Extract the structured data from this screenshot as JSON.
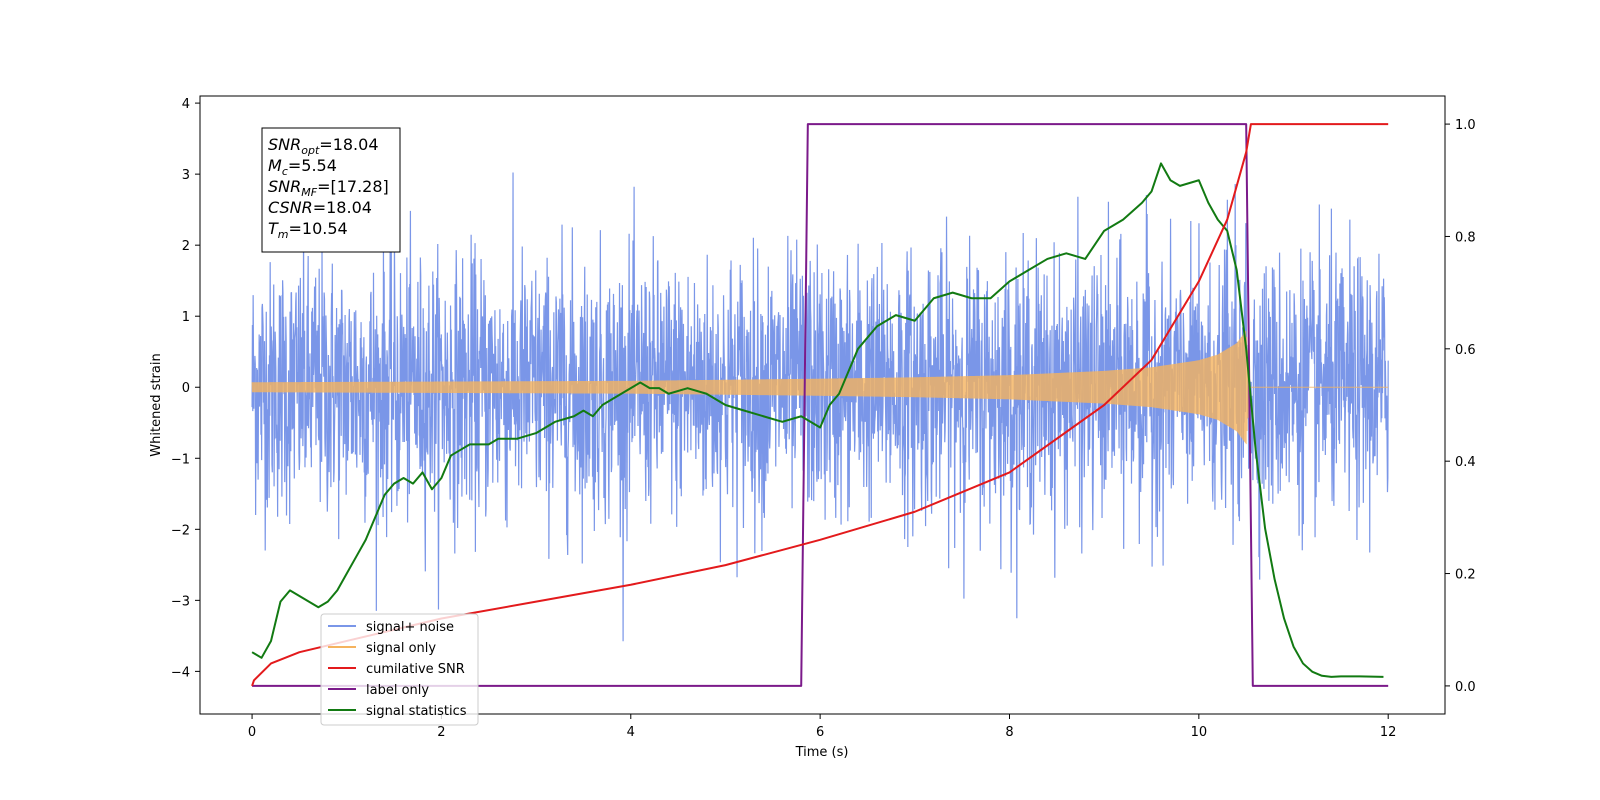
{
  "chart_data": {
    "type": "line",
    "xlabel": "Time (s)",
    "ylabel": "Whitened strain",
    "xlim": [
      -0.55,
      12.6
    ],
    "ylim": [
      -4.6,
      4.1
    ],
    "ylim_right": [
      -0.05,
      1.05
    ],
    "x_ticks": [
      0,
      2,
      4,
      6,
      8,
      10,
      12
    ],
    "y_ticks": [
      -4,
      -3,
      -2,
      -1,
      0,
      1,
      2,
      3,
      4
    ],
    "y_ticks_right": [
      0.0,
      0.2,
      0.4,
      0.6,
      0.8,
      1.0
    ],
    "y_tick_labels": [
      "−4",
      "−3",
      "−2",
      "−1",
      "0",
      "1",
      "2",
      "3",
      "4"
    ],
    "y_tick_labels_right": [
      "0.0",
      "0.2",
      "0.4",
      "0.6",
      "0.8",
      "1.0"
    ],
    "grid": false,
    "legend_position": "lower-left",
    "annotation": {
      "lines": [
        {
          "base": "SNR",
          "sub": "opt",
          "value": "=18.04"
        },
        {
          "base": "M",
          "sub": "c",
          "value": "=5.54"
        },
        {
          "base": "SNR",
          "sub": "MF",
          "value": "=[17.28]"
        },
        {
          "base": "CSNR",
          "sub": "",
          "value": "=18.04"
        },
        {
          "base": "T",
          "sub": "m",
          "value": "=10.54"
        }
      ]
    },
    "series": [
      {
        "name": "signal+ noise",
        "color": "#7a96e8",
        "axis": "left",
        "x_range": [
          0,
          12
        ],
        "envelope_typical": [
          -1.5,
          1.5
        ],
        "envelope_extreme": [
          -4.2,
          3.4
        ]
      },
      {
        "name": "signal only",
        "color": "#f5b35e",
        "axis": "left",
        "t_merger": 10.54,
        "x": [
          0,
          2,
          4,
          6,
          7,
          8,
          9,
          9.5,
          10,
          10.2,
          10.4,
          10.5,
          10.54,
          12
        ],
        "amplitude": [
          0.07,
          0.08,
          0.09,
          0.12,
          0.14,
          0.17,
          0.23,
          0.28,
          0.38,
          0.46,
          0.62,
          0.8,
          0.0,
          0.0
        ]
      },
      {
        "name": "cumilative SNR",
        "color": "#e31a1c",
        "axis": "right",
        "x": [
          0,
          0.02,
          0.2,
          0.5,
          1,
          2,
          3,
          4,
          5,
          6,
          7,
          8,
          9,
          9.5,
          10,
          10.3,
          10.5,
          10.55,
          12
        ],
        "y": [
          0.0,
          0.01,
          0.04,
          0.06,
          0.08,
          0.12,
          0.15,
          0.18,
          0.215,
          0.26,
          0.31,
          0.38,
          0.5,
          0.58,
          0.72,
          0.83,
          0.95,
          1.0,
          1.0
        ]
      },
      {
        "name": "label only",
        "color": "#7b1a8a",
        "axis": "right",
        "x": [
          0,
          5.8,
          5.87,
          10.5,
          10.57,
          12
        ],
        "y": [
          0,
          0,
          1,
          1,
          0,
          0
        ]
      },
      {
        "name": "signal statistics",
        "color": "#127a12",
        "axis": "right",
        "x": [
          0,
          0.1,
          0.2,
          0.3,
          0.4,
          0.5,
          0.6,
          0.7,
          0.8,
          0.9,
          1.0,
          1.1,
          1.2,
          1.3,
          1.4,
          1.5,
          1.6,
          1.7,
          1.8,
          1.9,
          2.0,
          2.1,
          2.2,
          2.3,
          2.4,
          2.5,
          2.6,
          2.8,
          3.0,
          3.2,
          3.4,
          3.5,
          3.6,
          3.7,
          3.8,
          4.0,
          4.1,
          4.2,
          4.3,
          4.4,
          4.6,
          4.8,
          5.0,
          5.2,
          5.4,
          5.6,
          5.8,
          6.0,
          6.1,
          6.2,
          6.4,
          6.6,
          6.8,
          7.0,
          7.2,
          7.4,
          7.6,
          7.8,
          8.0,
          8.2,
          8.4,
          8.6,
          8.8,
          9.0,
          9.2,
          9.4,
          9.5,
          9.6,
          9.7,
          9.8,
          10.0,
          10.1,
          10.2,
          10.3,
          10.4,
          10.5,
          10.6,
          10.7,
          10.8,
          10.9,
          11.0,
          11.1,
          11.2,
          11.3,
          11.4,
          11.5,
          11.7,
          11.95
        ],
        "y": [
          0.06,
          0.05,
          0.08,
          0.15,
          0.17,
          0.16,
          0.15,
          0.14,
          0.15,
          0.17,
          0.2,
          0.23,
          0.26,
          0.3,
          0.34,
          0.36,
          0.37,
          0.36,
          0.38,
          0.35,
          0.37,
          0.41,
          0.42,
          0.43,
          0.43,
          0.43,
          0.44,
          0.44,
          0.45,
          0.47,
          0.48,
          0.49,
          0.48,
          0.5,
          0.51,
          0.53,
          0.54,
          0.53,
          0.53,
          0.52,
          0.53,
          0.52,
          0.5,
          0.49,
          0.48,
          0.47,
          0.48,
          0.46,
          0.5,
          0.52,
          0.6,
          0.64,
          0.66,
          0.65,
          0.69,
          0.7,
          0.69,
          0.69,
          0.72,
          0.74,
          0.76,
          0.77,
          0.76,
          0.81,
          0.83,
          0.86,
          0.88,
          0.93,
          0.9,
          0.89,
          0.9,
          0.86,
          0.83,
          0.81,
          0.74,
          0.6,
          0.42,
          0.28,
          0.19,
          0.12,
          0.07,
          0.04,
          0.025,
          0.018,
          0.016,
          0.017,
          0.017,
          0.016
        ]
      }
    ]
  }
}
